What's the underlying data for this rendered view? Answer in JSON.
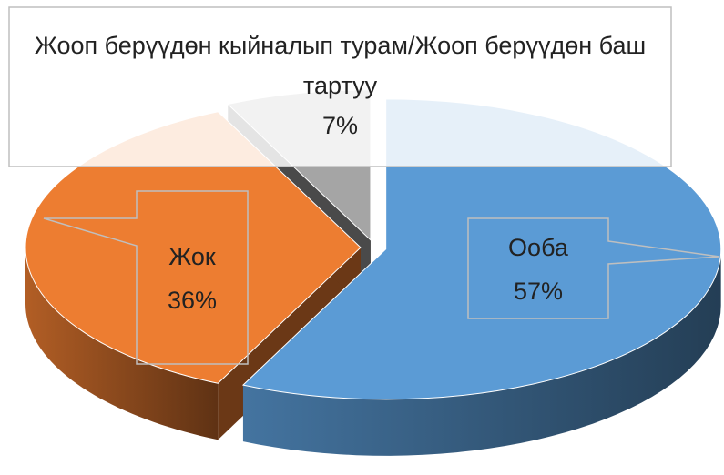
{
  "chart_data": {
    "type": "pie",
    "three_d": true,
    "exploded": true,
    "categories": [
      "Ооба",
      "Жок",
      "Жооп берүүдөн кыйналып турам/Жооп берүүдөн баш тартуу"
    ],
    "values": [
      57,
      36,
      7
    ],
    "value_labels": [
      "57%",
      "36%",
      "7%"
    ],
    "colors": [
      "#5b9bd5",
      "#ed7d31",
      "#a5a5a5"
    ]
  }
}
